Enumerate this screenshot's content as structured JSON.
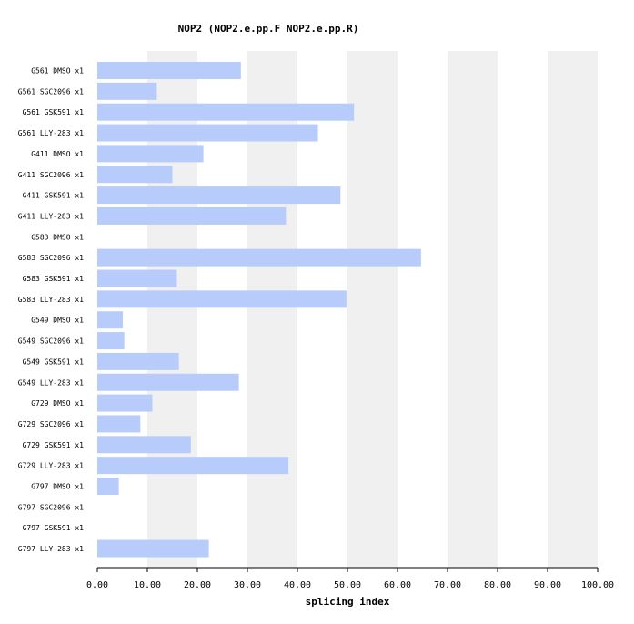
{
  "chart_data": {
    "type": "bar",
    "orientation": "horizontal",
    "title": "NOP2 (NOP2.e.pp.F  NOP2.e.pp.R)",
    "xlabel": "splicing index",
    "ylabel": "",
    "xlim": [
      0,
      100
    ],
    "x_ticks": [
      "0.00",
      "10.00",
      "20.00",
      "30.00",
      "40.00",
      "50.00",
      "60.00",
      "70.00",
      "80.00",
      "90.00",
      "100.00"
    ],
    "grid": "alternating vertical bands",
    "categories": [
      "G561 DMSO x1",
      "G561 SGC2096 x1",
      "G561 GSK591 x1",
      "G561 LLY-283 x1",
      "G411 DMSO x1",
      "G411 SGC2096 x1",
      "G411 GSK591 x1",
      "G411 LLY-283 x1",
      "G583 DMSO x1",
      "G583 SGC2096 x1",
      "G583 GSK591 x1",
      "G583 LLY-283 x1",
      "G549 DMSO x1",
      "G549 SGC2096 x1",
      "G549 GSK591 x1",
      "G549 LLY-283 x1",
      "G729 DMSO x1",
      "G729 SGC2096 x1",
      "G729 GSK591 x1",
      "G729 LLY-283 x1",
      "G797 DMSO x1",
      "G797 SGC2096 x1",
      "G797 GSK591 x1",
      "G797 LLY-283 x1"
    ],
    "values": [
      28.7,
      11.9,
      51.3,
      44.1,
      21.2,
      15.0,
      48.6,
      37.7,
      0,
      64.7,
      15.9,
      49.8,
      5.1,
      5.4,
      16.3,
      28.3,
      11.0,
      8.6,
      18.7,
      38.2,
      4.3,
      0,
      0,
      22.3
    ],
    "colors": {
      "bar": "#b8ccfc",
      "band": "#f0f0f0",
      "axis": "#000000",
      "background": "#ffffff"
    }
  }
}
